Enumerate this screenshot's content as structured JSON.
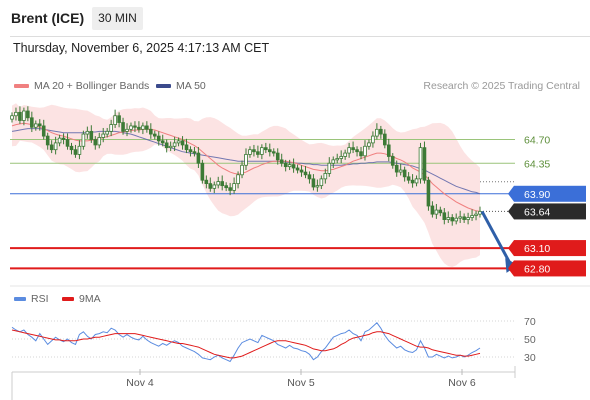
{
  "header": {
    "instrument": "Brent (ICE)",
    "timeframe": "30 MIN",
    "timestamp": "Thursday, November 6, 2025 4:17:13 AM CET"
  },
  "legend": {
    "ma20_label": "MA 20 + Bollinger Bands",
    "ma50_label": "MA 50",
    "copyright": "Research © 2025 Trading Central",
    "rsi_label": "RSI",
    "rsi_ma_label": "9MA"
  },
  "colors": {
    "candle": "#3d7a36",
    "ma20": "#f08080",
    "bollinger_band": "#fbd9d9",
    "ma50": "#5a64a8",
    "support_resistance": "#9ac47a",
    "current_level": "#3b6fd8",
    "target": "#e01b1b",
    "arrow": "#2f5fa8",
    "rsi": "#5b8ce0",
    "rsi_ma": "#e01b1b"
  },
  "chart_data": [
    {
      "type": "candlestick",
      "title": "",
      "x_ticks": [
        "Nov 4",
        "Nov 5",
        "Nov 6"
      ],
      "y_range": [
        62.6,
        65.4
      ],
      "levels": [
        {
          "label": "64.70",
          "value": 64.7,
          "kind": "resistance"
        },
        {
          "label": "64.35",
          "value": 64.35,
          "kind": "resistance"
        },
        {
          "label": "63.90",
          "value": 63.9,
          "kind": "pivot"
        },
        {
          "label": "63.64",
          "value": 63.64,
          "kind": "last_price"
        },
        {
          "label": "63.10",
          "value": 63.1,
          "kind": "target"
        },
        {
          "label": "62.80",
          "value": 62.8,
          "kind": "target"
        }
      ],
      "forecast_arrow": {
        "from": 63.64,
        "to": 62.82
      },
      "closes": [
        65.05,
        65.1,
        64.98,
        65.12,
        65.02,
        64.88,
        64.93,
        64.9,
        64.75,
        64.62,
        64.55,
        64.65,
        64.72,
        64.7,
        64.6,
        64.55,
        64.48,
        64.6,
        64.78,
        64.82,
        64.7,
        64.62,
        64.73,
        64.78,
        64.82,
        64.92,
        65.05,
        64.95,
        64.82,
        64.85,
        64.9,
        64.88,
        64.85,
        64.9,
        64.85,
        64.78,
        64.75,
        64.68,
        64.65,
        64.58,
        64.6,
        64.65,
        64.68,
        64.62,
        64.55,
        64.52,
        64.5,
        64.35,
        64.1,
        64.05,
        63.98,
        64.03,
        64.08,
        64.02,
        63.99,
        63.95,
        64.05,
        64.18,
        64.32,
        64.48,
        64.55,
        64.52,
        64.48,
        64.58,
        64.55,
        64.52,
        64.5,
        64.4,
        64.35,
        64.3,
        64.33,
        64.28,
        64.25,
        64.22,
        64.18,
        64.12,
        64.0,
        64.02,
        64.12,
        64.2,
        64.35,
        64.4,
        64.42,
        64.45,
        64.5,
        64.58,
        64.55,
        64.52,
        64.46,
        64.6,
        64.65,
        64.75,
        64.85,
        64.78,
        64.62,
        64.45,
        64.32,
        64.22,
        64.25,
        64.15,
        64.1,
        64.06,
        64.12,
        64.58,
        64.1,
        63.72,
        63.6,
        63.66,
        63.62,
        63.52,
        63.55,
        63.5,
        63.54,
        63.56,
        63.52,
        63.55,
        63.58,
        63.6,
        63.64
      ],
      "ma20": [
        64.9,
        64.92,
        64.93,
        64.94,
        64.93,
        64.92,
        64.9,
        64.88,
        64.86,
        64.83,
        64.8,
        64.78,
        64.76,
        64.75,
        64.73,
        64.71,
        64.69,
        64.68,
        64.68,
        64.68,
        64.69,
        64.7,
        64.71,
        64.73,
        64.74,
        64.76,
        64.78,
        64.8,
        64.81,
        64.82,
        64.83,
        64.84,
        64.84,
        64.85,
        64.85,
        64.85,
        64.84,
        64.82,
        64.8,
        64.78,
        64.76,
        64.74,
        64.72,
        64.7,
        64.67,
        64.64,
        64.61,
        64.57,
        64.52,
        64.47,
        64.42,
        64.37,
        64.32,
        64.28,
        64.25,
        64.22,
        64.2,
        64.19,
        64.2,
        64.22,
        64.25,
        64.28,
        64.3,
        64.33,
        64.35,
        64.37,
        64.38,
        64.38,
        64.38,
        64.38,
        64.37,
        64.36,
        64.34,
        64.32,
        64.3,
        64.28,
        64.26,
        64.25,
        64.24,
        64.24,
        64.25,
        64.26,
        64.28,
        64.3,
        64.32,
        64.35,
        64.38,
        64.4,
        64.42,
        64.44,
        64.46,
        64.48,
        64.5,
        64.5,
        64.49,
        64.47,
        64.45,
        64.42,
        64.4,
        64.37,
        64.33,
        64.28,
        64.25,
        64.22,
        64.18,
        64.12,
        64.05,
        64.0,
        63.95,
        63.9,
        63.86,
        63.82,
        63.78,
        63.75,
        63.72,
        63.69,
        63.67,
        63.65,
        63.64
      ],
      "ma50": [
        64.82,
        64.83,
        64.84,
        64.85,
        64.86,
        64.86,
        64.86,
        64.86,
        64.85,
        64.84,
        64.83,
        64.82,
        64.81,
        64.8,
        64.8,
        64.8,
        64.8,
        64.8,
        64.8,
        64.8,
        64.81,
        64.81,
        64.82,
        64.82,
        64.82,
        64.82,
        64.82,
        64.81,
        64.8,
        64.79,
        64.78,
        64.76,
        64.74,
        64.72,
        64.7,
        64.68,
        64.66,
        64.64,
        64.62,
        64.6,
        64.58,
        64.56,
        64.54,
        64.52,
        64.51,
        64.5,
        64.49,
        64.48,
        64.47,
        64.46,
        64.45,
        64.44,
        64.43,
        64.42,
        64.41,
        64.4,
        64.39,
        64.38,
        64.38,
        64.38,
        64.38,
        64.38,
        64.38,
        64.38,
        64.38,
        64.38,
        64.38,
        64.38,
        64.37,
        64.37,
        64.36,
        64.36,
        64.35,
        64.35,
        64.34,
        64.34,
        64.33,
        64.33,
        64.32,
        64.32,
        64.32,
        64.32,
        64.32,
        64.32,
        64.33,
        64.33,
        64.34,
        64.34,
        64.35,
        64.35,
        64.36,
        64.36,
        64.37,
        64.37,
        64.37,
        64.37,
        64.36,
        64.35,
        64.34,
        64.33,
        64.32,
        64.31,
        64.29,
        64.27,
        64.25,
        64.22,
        64.19,
        64.16,
        64.13,
        64.1,
        64.07,
        64.04,
        64.01,
        63.99,
        63.97,
        63.95,
        63.93,
        63.92,
        63.9
      ]
    },
    {
      "type": "line",
      "title": "",
      "y_ticks": [
        70,
        50,
        30
      ],
      "y_range": [
        20,
        80
      ],
      "series": [
        {
          "name": "RSI",
          "values": [
            63,
            60,
            58,
            60,
            55,
            52,
            48,
            56,
            50,
            44,
            48,
            52,
            49,
            47,
            50,
            46,
            44,
            55,
            58,
            53,
            50,
            55,
            56,
            58,
            57,
            62,
            60,
            55,
            52,
            55,
            52,
            50,
            49,
            53,
            49,
            46,
            44,
            42,
            45,
            43,
            46,
            48,
            46,
            42,
            40,
            38,
            36,
            33,
            29,
            28,
            27,
            30,
            32,
            29,
            27,
            25,
            32,
            40,
            46,
            48,
            50,
            48,
            46,
            54,
            52,
            50,
            48,
            44,
            42,
            40,
            43,
            40,
            39,
            37,
            36,
            33,
            27,
            30,
            36,
            40,
            46,
            52,
            54,
            56,
            57,
            60,
            56,
            54,
            48,
            58,
            60,
            64,
            68,
            62,
            54,
            48,
            44,
            40,
            42,
            38,
            36,
            35,
            38,
            48,
            40,
            30,
            30,
            33,
            31,
            29,
            31,
            29,
            30,
            32,
            30,
            32,
            35,
            37,
            40
          ]
        },
        {
          "name": "9MA",
          "values": [
            60,
            59,
            58,
            57,
            56,
            55,
            54,
            53,
            52,
            51,
            50,
            49,
            49,
            48,
            48,
            48,
            48,
            49,
            50,
            50,
            51,
            52,
            52,
            53,
            54,
            55,
            56,
            56,
            56,
            56,
            56,
            56,
            55,
            54,
            53,
            52,
            51,
            50,
            49,
            48,
            47,
            46,
            45,
            45,
            44,
            43,
            42,
            41,
            39,
            37,
            35,
            33,
            32,
            31,
            30,
            29,
            29,
            30,
            31,
            33,
            35,
            37,
            39,
            41,
            43,
            45,
            47,
            48,
            48,
            48,
            47,
            46,
            45,
            44,
            43,
            41,
            39,
            38,
            37,
            37,
            38,
            39,
            41,
            44,
            46,
            49,
            51,
            52,
            53,
            54,
            55,
            57,
            58,
            58,
            57,
            56,
            54,
            52,
            50,
            48,
            46,
            44,
            42,
            41,
            41,
            40,
            38,
            37,
            36,
            35,
            34,
            33,
            32,
            32,
            31,
            31,
            32,
            33,
            34
          ]
        }
      ]
    }
  ]
}
